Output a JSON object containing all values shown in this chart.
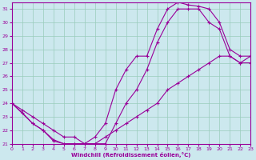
{
  "xlabel": "Windchill (Refroidissement éolien,°C)",
  "bg_color": "#cce8ee",
  "grid_color": "#99ccbb",
  "line_color": "#990099",
  "xlim": [
    0,
    23
  ],
  "ylim": [
    21,
    31.5
  ],
  "xticks": [
    0,
    1,
    2,
    3,
    4,
    5,
    6,
    7,
    8,
    9,
    10,
    11,
    12,
    13,
    14,
    15,
    16,
    17,
    18,
    19,
    20,
    21,
    22,
    23
  ],
  "yticks": [
    21,
    22,
    23,
    24,
    25,
    26,
    27,
    28,
    29,
    30,
    31
  ],
  "curve1_x": [
    0,
    1,
    2,
    3,
    4,
    5,
    6,
    7,
    8,
    9,
    10,
    11,
    12,
    13,
    14,
    15,
    16,
    17,
    18,
    19,
    20,
    21,
    22,
    23
  ],
  "curve1_y": [
    24,
    23.3,
    22.5,
    22.0,
    21.2,
    21.0,
    21.0,
    21.0,
    21.5,
    22.5,
    25.0,
    26.5,
    27.5,
    27.5,
    29.5,
    31.0,
    31.5,
    31.3,
    31.2,
    31.0,
    30.0,
    28.0,
    27.5,
    27.5
  ],
  "curve2_x": [
    0,
    2,
    3,
    4,
    5,
    6,
    7,
    8,
    9,
    10,
    11,
    12,
    13,
    14,
    15,
    16,
    17,
    18,
    19,
    20,
    21,
    22,
    23
  ],
  "curve2_y": [
    24,
    22.5,
    22.0,
    21.3,
    21.0,
    21.0,
    21.0,
    21.0,
    21.0,
    22.5,
    24.0,
    25.0,
    26.5,
    28.5,
    30.0,
    31.0,
    31.0,
    31.0,
    30.0,
    29.5,
    27.5,
    27.0,
    27.5
  ],
  "curve3_x": [
    0,
    1,
    2,
    3,
    4,
    5,
    6,
    7,
    8,
    9,
    10,
    11,
    12,
    13,
    14,
    15,
    16,
    17,
    18,
    19,
    20,
    21,
    22,
    23
  ],
  "curve3_y": [
    24,
    23.5,
    23.0,
    22.5,
    22.0,
    21.5,
    21.5,
    21.0,
    21.0,
    21.5,
    22.0,
    22.5,
    23.0,
    23.5,
    24.0,
    25.0,
    25.5,
    26.0,
    26.5,
    27.0,
    27.5,
    27.5,
    27.0,
    27.0
  ]
}
